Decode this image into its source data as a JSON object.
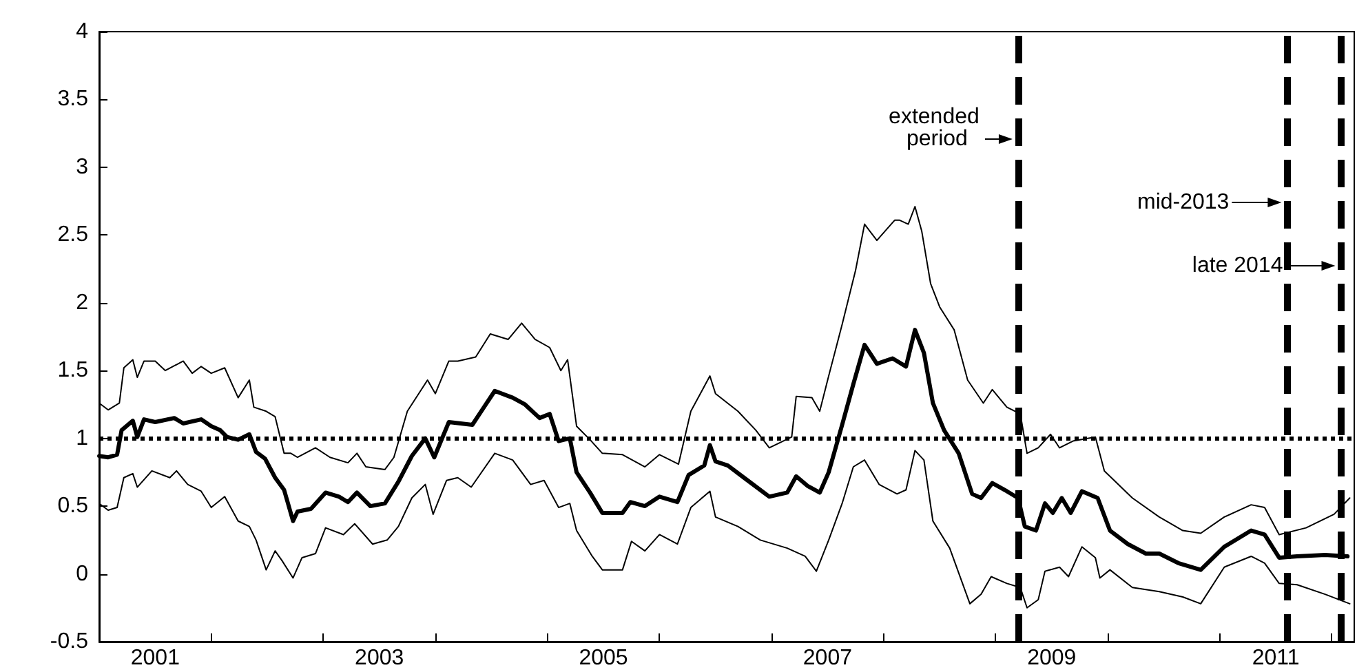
{
  "chart_data": {
    "type": "line",
    "marker": "none",
    "line_style": "solid",
    "grid": false,
    "xlim": [
      2001,
      2012.2
    ],
    "xticks": [
      {
        "value": 2001.5,
        "label": "2001"
      },
      {
        "value": 2002,
        "label": null
      },
      {
        "value": 2003,
        "label": null
      },
      {
        "value": 2003.5,
        "label": "2003"
      },
      {
        "value": 2004,
        "label": null
      },
      {
        "value": 2005,
        "label": null
      },
      {
        "value": 2005.5,
        "label": "2005"
      },
      {
        "value": 2006,
        "label": null
      },
      {
        "value": 2007,
        "label": null
      },
      {
        "value": 2007.5,
        "label": "2007"
      },
      {
        "value": 2008,
        "label": null
      },
      {
        "value": 2009,
        "label": null
      },
      {
        "value": 2009.5,
        "label": "2009"
      },
      {
        "value": 2010,
        "label": null
      },
      {
        "value": 2011,
        "label": null
      },
      {
        "value": 2011.5,
        "label": "2011"
      },
      {
        "value": 2012,
        "label": null
      }
    ],
    "ylim": [
      -0.5,
      4
    ],
    "yticks": [
      -0.5,
      0,
      0.5,
      1,
      1.5,
      2,
      2.5,
      3,
      3.5,
      4
    ],
    "series": [
      {
        "color": "#000000",
        "x": [
          2001.0,
          2001.08,
          2001.18,
          2001.22,
          2001.3,
          2001.34,
          2001.4,
          2001.5,
          2001.59,
          2001.75,
          2001.83,
          2001.91,
          2002.0,
          2002.12,
          2002.24,
          2002.34,
          2002.38,
          2002.49,
          2002.57,
          2002.65,
          2002.71,
          2002.77,
          2002.93,
          2003.06,
          2003.22,
          2003.3,
          2003.38,
          2003.55,
          2003.63,
          2003.75,
          2003.93,
          2004.0,
          2004.12,
          2004.2,
          2004.36,
          2004.49,
          2004.65,
          2004.77,
          2004.89,
          2005.02,
          2005.12,
          2005.18,
          2005.26,
          2005.38,
          2005.49,
          2005.67,
          2005.87,
          2006.0,
          2006.17,
          2006.28,
          2006.45,
          2006.5,
          2006.7,
          2006.86,
          2006.98,
          2007.18,
          2007.22,
          2007.36,
          2007.43,
          2007.51,
          2007.63,
          2007.75,
          2007.83,
          2007.94,
          2008.1,
          2008.14,
          2008.22,
          2008.28,
          2008.34,
          2008.42,
          2008.5,
          2008.63,
          2008.75,
          2008.89,
          2008.97,
          2009.1,
          2009.22,
          2009.28,
          2009.38,
          2009.49,
          2009.57,
          2009.69,
          2009.89,
          2009.97,
          2010.22,
          2010.46,
          2010.67,
          2010.83,
          2011.04,
          2011.28,
          2011.4,
          2011.53,
          2011.77,
          2012.02,
          2012.16
        ],
        "values": [
          1.26,
          1.21,
          1.26,
          1.52,
          1.58,
          1.45,
          1.57,
          1.57,
          1.5,
          1.57,
          1.48,
          1.53,
          1.48,
          1.52,
          1.3,
          1.43,
          1.23,
          1.2,
          1.16,
          0.89,
          0.89,
          0.86,
          0.93,
          0.86,
          0.82,
          0.89,
          0.79,
          0.77,
          0.86,
          1.2,
          1.43,
          1.33,
          1.57,
          1.57,
          1.6,
          1.77,
          1.73,
          1.85,
          1.73,
          1.67,
          1.5,
          1.58,
          1.09,
          0.99,
          0.89,
          0.88,
          0.79,
          0.88,
          0.81,
          1.2,
          1.46,
          1.33,
          1.2,
          1.06,
          0.93,
          1.01,
          1.31,
          1.3,
          1.2,
          1.46,
          1.84,
          2.24,
          2.58,
          2.46,
          2.61,
          2.61,
          2.58,
          2.71,
          2.53,
          2.14,
          1.97,
          1.8,
          1.43,
          1.26,
          1.36,
          1.23,
          1.18,
          0.89,
          0.93,
          1.03,
          0.93,
          0.98,
          1.01,
          0.76,
          0.56,
          0.42,
          0.32,
          0.3,
          0.42,
          0.51,
          0.49,
          0.29,
          0.34,
          0.44,
          0.56
        ]
      },
      {
        "color": "#000000",
        "x": [
          2001.0,
          2001.08,
          2001.16,
          2001.2,
          2001.3,
          2001.34,
          2001.4,
          2001.5,
          2001.67,
          2001.75,
          2001.91,
          2002.0,
          2002.08,
          2002.14,
          2002.24,
          2002.34,
          2002.4,
          2002.48,
          2002.57,
          2002.65,
          2002.73,
          2002.77,
          2002.89,
          2003.02,
          2003.14,
          2003.22,
          2003.3,
          2003.42,
          2003.55,
          2003.67,
          2003.79,
          2003.91,
          2003.99,
          2004.12,
          2004.33,
          2004.45,
          2004.53,
          2004.69,
          2004.8,
          2004.93,
          2005.02,
          2005.1,
          2005.2,
          2005.26,
          2005.38,
          2005.49,
          2005.67,
          2005.74,
          2005.87,
          2006.0,
          2006.16,
          2006.26,
          2006.4,
          2006.45,
          2006.5,
          2006.61,
          2006.77,
          2006.98,
          2007.14,
          2007.22,
          2007.32,
          2007.43,
          2007.51,
          2007.63,
          2007.73,
          2007.83,
          2007.94,
          2008.08,
          2008.2,
          2008.28,
          2008.36,
          2008.44,
          2008.54,
          2008.67,
          2008.79,
          2008.87,
          2008.97,
          2009.1,
          2009.2,
          2009.26,
          2009.36,
          2009.44,
          2009.51,
          2009.59,
          2009.67,
          2009.77,
          2009.91,
          2010.02,
          2010.18,
          2010.34,
          2010.46,
          2010.63,
          2010.83,
          2011.04,
          2011.28,
          2011.4,
          2011.53,
          2011.69,
          2011.94,
          2012.14
        ],
        "values": [
          0.87,
          0.86,
          0.88,
          1.06,
          1.13,
          1.01,
          1.14,
          1.12,
          1.15,
          1.11,
          1.14,
          1.09,
          1.06,
          1.01,
          0.99,
          1.03,
          0.9,
          0.85,
          0.71,
          0.62,
          0.39,
          0.46,
          0.48,
          0.6,
          0.57,
          0.53,
          0.6,
          0.5,
          0.52,
          0.68,
          0.87,
          1.0,
          0.86,
          1.12,
          1.1,
          1.25,
          1.35,
          1.3,
          1.25,
          1.15,
          1.18,
          0.98,
          1.0,
          0.75,
          0.6,
          0.45,
          0.45,
          0.53,
          0.5,
          0.57,
          0.53,
          0.73,
          0.8,
          0.95,
          0.83,
          0.8,
          0.7,
          0.57,
          0.6,
          0.72,
          0.65,
          0.6,
          0.75,
          1.1,
          1.4,
          1.69,
          1.55,
          1.59,
          1.53,
          1.8,
          1.63,
          1.26,
          1.06,
          0.89,
          0.59,
          0.56,
          0.67,
          0.61,
          0.56,
          0.35,
          0.32,
          0.52,
          0.45,
          0.56,
          0.45,
          0.61,
          0.56,
          0.32,
          0.22,
          0.15,
          0.15,
          0.08,
          0.03,
          0.2,
          0.32,
          0.29,
          0.12,
          0.13,
          0.14,
          0.13
        ]
      },
      {
        "color": "#000000",
        "x": [
          2001.0,
          2001.08,
          2001.16,
          2001.22,
          2001.3,
          2001.34,
          2001.47,
          2001.63,
          2001.69,
          2001.79,
          2001.91,
          2002.0,
          2002.12,
          2002.24,
          2002.34,
          2002.4,
          2002.49,
          2002.57,
          2002.63,
          2002.73,
          2002.81,
          2002.93,
          2003.02,
          2003.18,
          2003.28,
          2003.44,
          2003.57,
          2003.67,
          2003.79,
          2003.91,
          2003.98,
          2004.1,
          2004.2,
          2004.32,
          2004.53,
          2004.69,
          2004.85,
          2004.97,
          2005.1,
          2005.2,
          2005.26,
          2005.4,
          2005.49,
          2005.67,
          2005.75,
          2005.87,
          2006.0,
          2006.16,
          2006.28,
          2006.45,
          2006.5,
          2006.7,
          2006.9,
          2007.14,
          2007.3,
          2007.4,
          2007.51,
          2007.63,
          2007.73,
          2007.83,
          2007.96,
          2008.12,
          2008.2,
          2008.28,
          2008.36,
          2008.44,
          2008.59,
          2008.77,
          2008.87,
          2008.96,
          2009.1,
          2009.22,
          2009.28,
          2009.38,
          2009.44,
          2009.57,
          2009.65,
          2009.77,
          2009.89,
          2009.93,
          2010.02,
          2010.22,
          2010.46,
          2010.67,
          2010.83,
          2011.04,
          2011.28,
          2011.4,
          2011.53,
          2011.69,
          2011.94,
          2012.16
        ],
        "values": [
          0.52,
          0.47,
          0.49,
          0.71,
          0.74,
          0.64,
          0.76,
          0.71,
          0.76,
          0.66,
          0.61,
          0.49,
          0.57,
          0.39,
          0.35,
          0.25,
          0.03,
          0.17,
          0.1,
          -0.03,
          0.12,
          0.15,
          0.34,
          0.29,
          0.37,
          0.22,
          0.25,
          0.35,
          0.56,
          0.66,
          0.44,
          0.69,
          0.71,
          0.64,
          0.89,
          0.84,
          0.66,
          0.69,
          0.49,
          0.52,
          0.32,
          0.13,
          0.03,
          0.03,
          0.24,
          0.17,
          0.29,
          0.22,
          0.49,
          0.61,
          0.42,
          0.35,
          0.25,
          0.19,
          0.13,
          0.02,
          0.25,
          0.52,
          0.79,
          0.84,
          0.66,
          0.59,
          0.62,
          0.91,
          0.84,
          0.39,
          0.19,
          -0.22,
          -0.15,
          -0.02,
          -0.07,
          -0.1,
          -0.25,
          -0.19,
          0.02,
          0.05,
          -0.02,
          0.2,
          0.12,
          -0.03,
          0.03,
          -0.1,
          -0.13,
          -0.17,
          -0.22,
          0.05,
          0.13,
          0.08,
          -0.07,
          -0.08,
          -0.15,
          -0.22
        ]
      }
    ],
    "ref_lines": [
      {
        "axis": "y",
        "value": 1,
        "label": null,
        "color": "#000000",
        "line_style": "dotted"
      },
      {
        "axis": "x",
        "value": 2009.2,
        "label": "extended period",
        "color": "#000000",
        "line_style": "dashed"
      },
      {
        "axis": "x",
        "value": 2011.6,
        "label": "mid-2013",
        "color": "#000000",
        "line_style": "dashed"
      },
      {
        "axis": "x",
        "value": 2012.08,
        "label": "late 2014",
        "color": "#000000",
        "line_style": "dashed"
      }
    ]
  }
}
